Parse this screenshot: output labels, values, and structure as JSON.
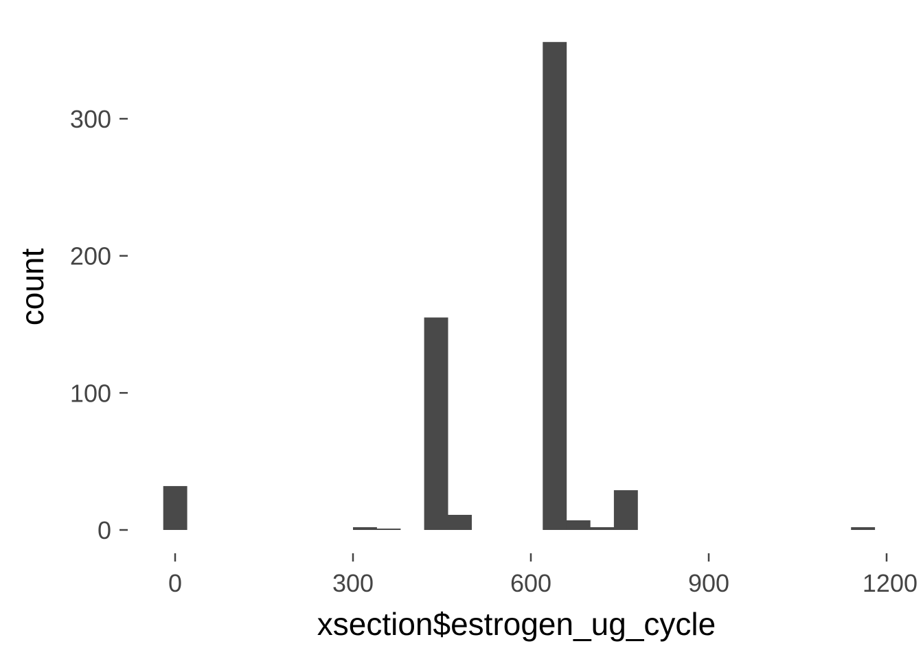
{
  "chart_data": {
    "type": "bar",
    "subtype": "histogram",
    "title": "",
    "xlabel": "xsection$estrogen_ug_cycle",
    "ylabel": "count",
    "xlim": [
      -100,
      1200
    ],
    "ylim": [
      0,
      360
    ],
    "x_ticks": [
      0,
      300,
      600,
      900,
      1200
    ],
    "x_tick_labels": [
      "0",
      "300",
      "600",
      "900",
      "1200"
    ],
    "y_ticks": [
      0,
      100,
      200,
      300
    ],
    "y_tick_labels": [
      "0",
      "100",
      "200",
      "300"
    ],
    "grid": false,
    "bar_color": "#494949",
    "bins": [
      {
        "x0": -20,
        "x1": 20,
        "count": 32
      },
      {
        "x0": 300,
        "x1": 340,
        "count": 2
      },
      {
        "x0": 340,
        "x1": 380,
        "count": 1
      },
      {
        "x0": 420,
        "x1": 460,
        "count": 155
      },
      {
        "x0": 460,
        "x1": 500,
        "count": 11
      },
      {
        "x0": 620,
        "x1": 660,
        "count": 356
      },
      {
        "x0": 660,
        "x1": 700,
        "count": 7
      },
      {
        "x0": 700,
        "x1": 740,
        "count": 2
      },
      {
        "x0": 740,
        "x1": 780,
        "count": 29
      },
      {
        "x0": 1140,
        "x1": 1180,
        "count": 2
      }
    ]
  }
}
